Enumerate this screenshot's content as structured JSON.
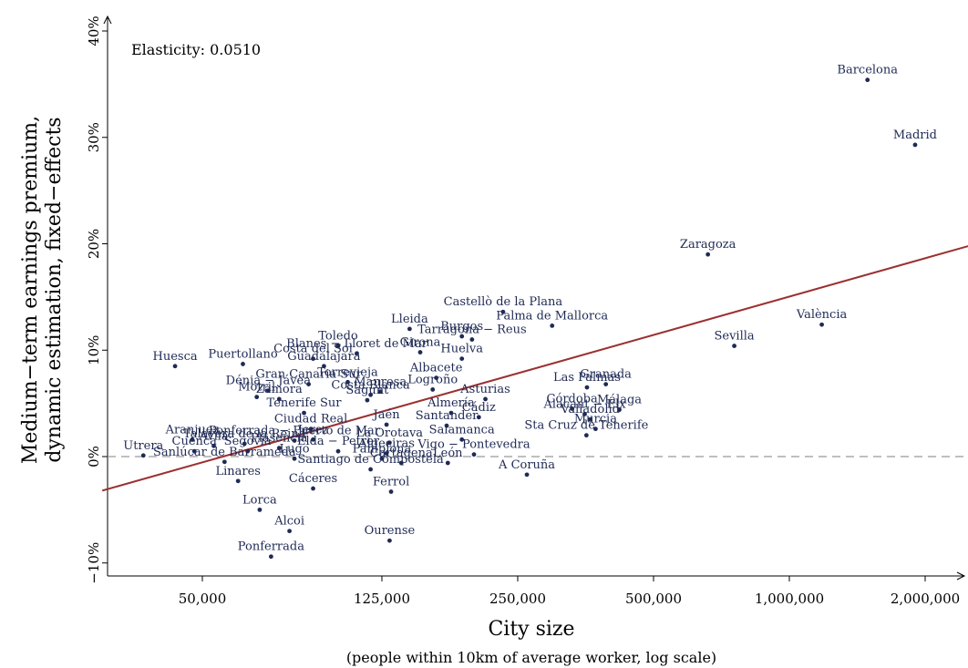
{
  "chart_data": {
    "type": "scatter",
    "xlabel": "City size",
    "xlabel_sub": "(people within 10km of average worker, log scale)",
    "ylabel_line1": "Medium−term earnings premium,",
    "ylabel_line2": "dynamic estimation, fixed−effects",
    "annotation": "Elasticity: 0.0510",
    "x_scale": "log",
    "x_ticks": [
      50000,
      125000,
      250000,
      500000,
      1000000,
      2000000
    ],
    "x_tick_labels": [
      "50,000",
      "125,000",
      "250,000",
      "500,000",
      "1,000,000",
      "2,000,000"
    ],
    "y_ticks": [
      -10,
      0,
      10,
      20,
      30,
      40
    ],
    "y_tick_labels": [
      "−10%",
      "0%",
      "10%",
      "20%",
      "30%",
      "40%"
    ],
    "xlim": [
      26000,
      2700000
    ],
    "ylim": [
      -11,
      41
    ],
    "zero_line": true,
    "grid": false,
    "colors": {
      "points": "#1f2a55",
      "fit_line": "#9b3030",
      "zero_line": "#999999"
    },
    "fit_line": {
      "x": [
        30000,
        2500000
      ],
      "y": [
        -3.2,
        19.8
      ]
    },
    "points": [
      {
        "name": "Barcelona",
        "x": 1490000,
        "y": 35.4
      },
      {
        "name": "Madrid",
        "x": 1900000,
        "y": 29.3
      },
      {
        "name": "Zaragoza",
        "x": 660000,
        "y": 19.0
      },
      {
        "name": "València",
        "x": 1180000,
        "y": 12.4
      },
      {
        "name": "Sevilla",
        "x": 755000,
        "y": 10.4
      },
      {
        "name": "Castellò de la Plana",
        "x": 232000,
        "y": 13.6
      },
      {
        "name": "Palma de Mallorca",
        "x": 298000,
        "y": 12.3
      },
      {
        "name": "Lleida",
        "x": 144000,
        "y": 12.0
      },
      {
        "name": "Burgos",
        "x": 188000,
        "y": 11.3
      },
      {
        "name": "Tarragona − Reus",
        "x": 198000,
        "y": 11.0
      },
      {
        "name": "Girona",
        "x": 152000,
        "y": 9.8
      },
      {
        "name": "Huelva",
        "x": 188000,
        "y": 9.2
      },
      {
        "name": "Toledo",
        "x": 100000,
        "y": 10.4
      },
      {
        "name": "Blanes − Lloret de Mar",
        "x": 110000,
        "y": 9.7
      },
      {
        "name": "Huesca",
        "x": 43500,
        "y": 8.5
      },
      {
        "name": "Puertollano",
        "x": 61500,
        "y": 8.7
      },
      {
        "name": "Costa del Sol",
        "x": 88000,
        "y": 9.2
      },
      {
        "name": "Guadalajara",
        "x": 93000,
        "y": 8.5
      },
      {
        "name": "Gran Canaria Sur",
        "x": 86000,
        "y": 6.8
      },
      {
        "name": "Albacete",
        "x": 165000,
        "y": 7.4
      },
      {
        "name": "Dénia − Jávea",
        "x": 70000,
        "y": 6.2
      },
      {
        "name": "Torrevieja",
        "x": 105000,
        "y": 7.0
      },
      {
        "name": "Manresa",
        "x": 124000,
        "y": 6.1
      },
      {
        "name": "Logroño",
        "x": 162000,
        "y": 6.3
      },
      {
        "name": "Costa Blanca",
        "x": 118000,
        "y": 5.8
      },
      {
        "name": "Motril",
        "x": 66000,
        "y": 5.6
      },
      {
        "name": "Zamora",
        "x": 74000,
        "y": 5.4
      },
      {
        "name": "Sagunt",
        "x": 116000,
        "y": 5.3
      },
      {
        "name": "Asturias",
        "x": 212000,
        "y": 5.4
      },
      {
        "name": "Tenerife Sur",
        "x": 84000,
        "y": 4.1
      },
      {
        "name": "Almería",
        "x": 178000,
        "y": 4.1
      },
      {
        "name": "Cádiz",
        "x": 205000,
        "y": 3.7
      },
      {
        "name": "Santander",
        "x": 174000,
        "y": 2.9
      },
      {
        "name": "Ciudad Real",
        "x": 87000,
        "y": 2.6
      },
      {
        "name": "Jaén",
        "x": 128000,
        "y": 3.0
      },
      {
        "name": "Granada",
        "x": 392000,
        "y": 6.8
      },
      {
        "name": "Las Palmas",
        "x": 356000,
        "y": 6.5
      },
      {
        "name": "Córdoba",
        "x": 330000,
        "y": 4.5
      },
      {
        "name": "Málaga",
        "x": 420000,
        "y": 4.4
      },
      {
        "name": "Alacant − Elx",
        "x": 352000,
        "y": 4.0
      },
      {
        "name": "Valladolid",
        "x": 362000,
        "y": 3.5
      },
      {
        "name": "Murcia",
        "x": 372000,
        "y": 2.6
      },
      {
        "name": "Sta Cruz de Tenerife",
        "x": 355000,
        "y": 2.0
      },
      {
        "name": "Salamanca",
        "x": 188000,
        "y": 1.6
      },
      {
        "name": "Aranjuez",
        "x": 47500,
        "y": 1.6
      },
      {
        "name": "Ponferrada − Puerto de Mar",
        "x": 80000,
        "y": 1.5
      },
      {
        "name": "La Orotava",
        "x": 130000,
        "y": 1.3
      },
      {
        "name": "Talavera de la Reina",
        "x": 62000,
        "y": 1.2
      },
      {
        "name": "Ávila",
        "x": 53000,
        "y": 1.0
      },
      {
        "name": "Utrera",
        "x": 37000,
        "y": 0.1
      },
      {
        "name": "Cuenca",
        "x": 48000,
        "y": 0.5
      },
      {
        "name": "Segovia",
        "x": 63000,
        "y": 0.5
      },
      {
        "name": "Lugo",
        "x": 80000,
        "y": -0.2
      },
      {
        "name": "Elda − Petrer",
        "x": 100000,
        "y": 0.5
      },
      {
        "name": "Algeciras",
        "x": 128000,
        "y": 0.3
      },
      {
        "name": "Pamplona",
        "x": 125000,
        "y": -0.2
      },
      {
        "name": "Cartagena",
        "x": 138000,
        "y": -0.6
      },
      {
        "name": "León",
        "x": 175000,
        "y": -0.6
      },
      {
        "name": "Vigo − Pontevedra",
        "x": 200000,
        "y": 0.2
      },
      {
        "name": "Sanlúcar de Barrameda",
        "x": 56000,
        "y": -0.5
      },
      {
        "name": "Santiago de Compostela",
        "x": 118000,
        "y": -1.2
      },
      {
        "name": "A Coruña",
        "x": 262000,
        "y": -1.7
      },
      {
        "name": "Linares",
        "x": 60000,
        "y": -2.3
      },
      {
        "name": "Cáceres",
        "x": 88000,
        "y": -3.0
      },
      {
        "name": "Lorca",
        "x": 67000,
        "y": -5.0
      },
      {
        "name": "Ferrol",
        "x": 131000,
        "y": -3.3
      },
      {
        "name": "Alcoi",
        "x": 78000,
        "y": -7.0
      },
      {
        "name": "Ourense",
        "x": 130000,
        "y": -7.9
      },
      {
        "name": "Ponferrada",
        "x": 71000,
        "y": -9.4
      },
      {
        "name": "Jerez",
        "x": 88000,
        "y": 1.6
      },
      {
        "name": "Plasencia",
        "x": 74000,
        "y": 0.8
      }
    ]
  }
}
